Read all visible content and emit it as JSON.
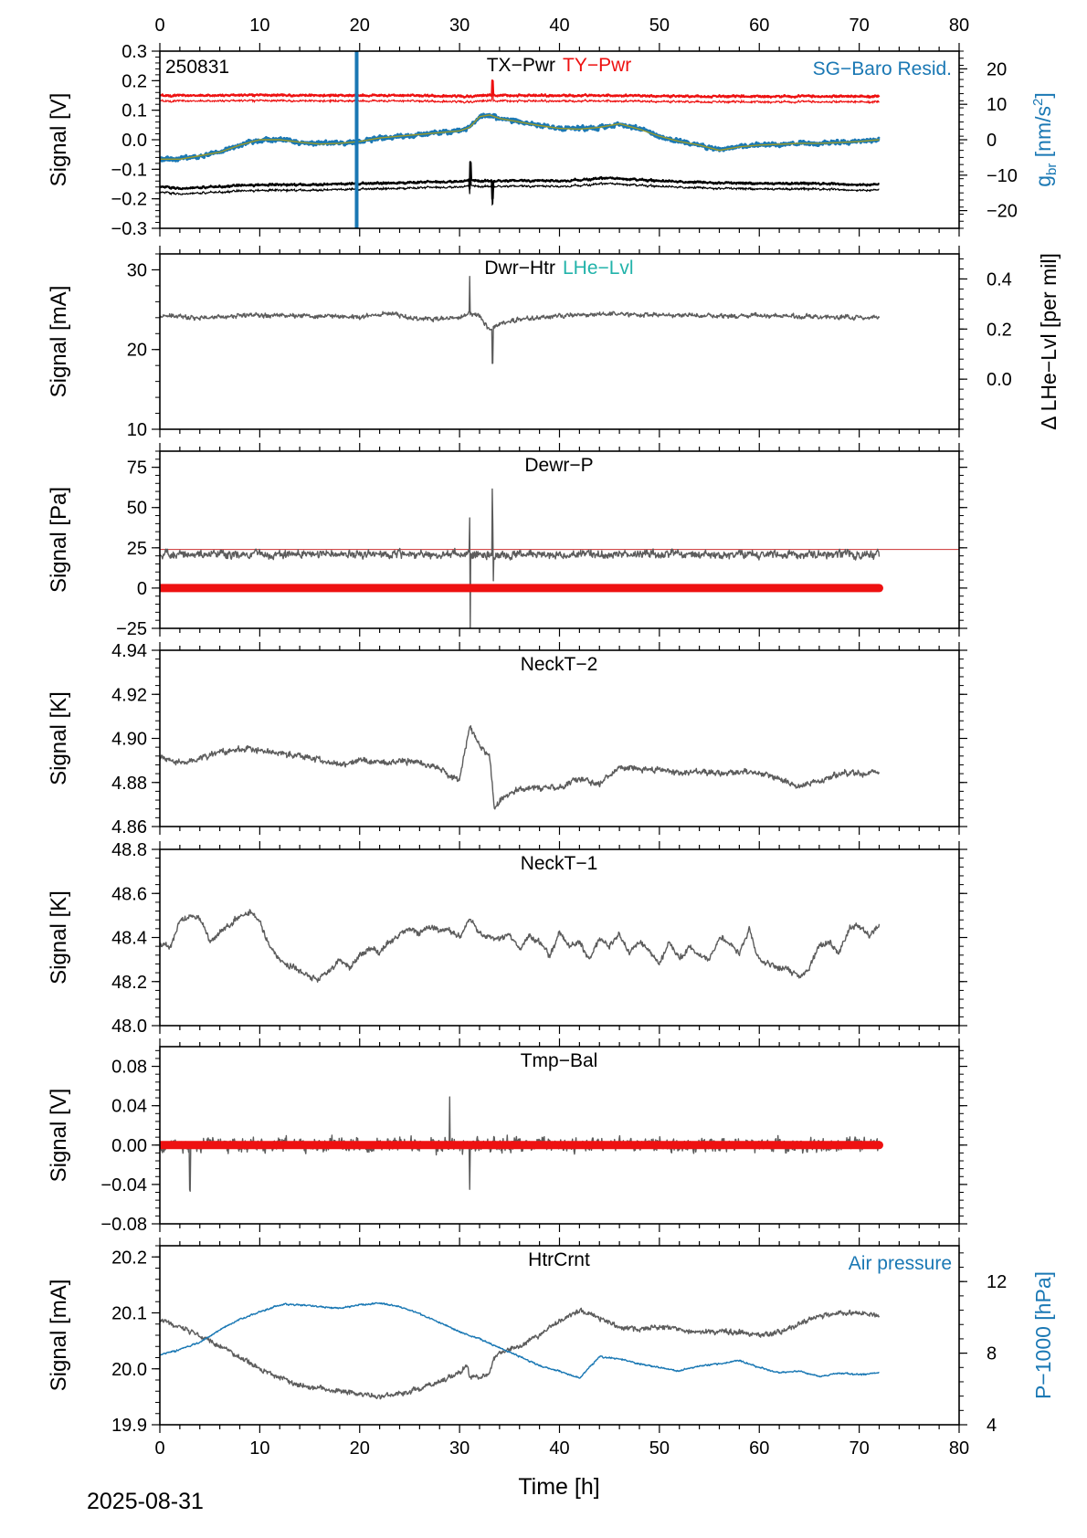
{
  "footer": {
    "date": "2025-08-31"
  },
  "x_axis": {
    "label": "Time [h]",
    "range": [
      0,
      80
    ],
    "ticks": [
      0,
      10,
      20,
      30,
      40,
      50,
      60,
      70,
      80
    ]
  },
  "colors": {
    "black": "#000000",
    "red": "#ee1111",
    "blue": "#1a78b4",
    "cyan": "#22b3aa",
    "gray": "#5c5c5c",
    "olive": "#9a9a2a",
    "thinred": "#cc3333"
  },
  "chart_data": [
    {
      "id": "p1",
      "type": "line",
      "stamp": "250831",
      "titles": [
        {
          "text": "TX−Pwr",
          "color": "#000000"
        },
        {
          "text": "TY−Pwr",
          "color": "#ee1111"
        }
      ],
      "corner_label": {
        "text": "SG−Baro Resid.",
        "color": "#1a78b4"
      },
      "ylabel": "Signal [V]",
      "ylim": [
        -0.3,
        0.3
      ],
      "yticks": [
        -0.3,
        -0.2,
        -0.1,
        0.0,
        0.1,
        0.2,
        0.3
      ],
      "ytick_labels": [
        "−0.3",
        "−0.2",
        "−0.1",
        "0.0",
        "0.1",
        "0.2",
        "0.3"
      ],
      "right_axis": {
        "label": "g_br [nm/s²]",
        "label_main": "g",
        "label_sub": "br",
        "label_rest": " [nm/s",
        "label_sup": "2",
        "label_end": "]",
        "color": "#1a78b4",
        "ylim": [
          -25,
          25
        ],
        "ticks": [
          -20,
          -10,
          0,
          10,
          20
        ],
        "tick_labels": [
          "−20",
          "−10",
          "0",
          "10",
          "20"
        ]
      },
      "series": [
        {
          "name": "TY−Pwr",
          "color": "#ee1111",
          "x": [
            0,
            5,
            10,
            15,
            20,
            25,
            30,
            31,
            33,
            35,
            40,
            45,
            50,
            55,
            60,
            65,
            70,
            72
          ],
          "y": [
            0.15,
            0.15,
            0.152,
            0.15,
            0.15,
            0.15,
            0.148,
            0.146,
            0.152,
            0.15,
            0.15,
            0.15,
            0.148,
            0.147,
            0.147,
            0.147,
            0.147,
            0.147
          ]
        },
        {
          "name": "TX−Pwr",
          "color": "#000000",
          "x": [
            0,
            3,
            6,
            10,
            15,
            20,
            25,
            30,
            31,
            33,
            36,
            40,
            45,
            50,
            55,
            60,
            65,
            70,
            72
          ],
          "y": [
            -0.16,
            -0.165,
            -0.158,
            -0.153,
            -0.152,
            -0.148,
            -0.145,
            -0.142,
            -0.138,
            -0.14,
            -0.138,
            -0.14,
            -0.13,
            -0.14,
            -0.145,
            -0.148,
            -0.148,
            -0.152,
            -0.152
          ]
        },
        {
          "name": "SG−Baro Resid.",
          "color": "#1a78b4",
          "axis": "right",
          "x": [
            0,
            2,
            4,
            6,
            8,
            10,
            12,
            14,
            16,
            18,
            20,
            22,
            24,
            26,
            28,
            30,
            31,
            32,
            33,
            34,
            36,
            38,
            40,
            42,
            44,
            46,
            48,
            50,
            52,
            54,
            56,
            58,
            60,
            62,
            64,
            66,
            68,
            70,
            72
          ],
          "y": [
            -5.5,
            -5.5,
            -4.5,
            -3.5,
            -1.5,
            0.0,
            0.0,
            -0.7,
            -1.2,
            -1.0,
            -0.5,
            0.5,
            1.0,
            1.5,
            2.0,
            2.5,
            3.5,
            6.5,
            7.0,
            6.0,
            5.0,
            4.0,
            3.2,
            3.0,
            3.5,
            4.5,
            3.0,
            1.0,
            -0.5,
            -1.5,
            -3.0,
            -2.0,
            -1.5,
            -1.3,
            -1.0,
            -1.0,
            -0.8,
            -0.5,
            0.0
          ]
        }
      ]
    },
    {
      "id": "p2",
      "type": "line",
      "titles": [
        {
          "text": "Dwr−Htr",
          "color": "#000000"
        },
        {
          "text": "LHe−Lvl",
          "color": "#22b3aa"
        }
      ],
      "ylabel": "Signal [mA]",
      "ylim": [
        10,
        32
      ],
      "yticks": [
        10,
        20,
        30
      ],
      "ytick_labels": [
        "10",
        "20",
        "30"
      ],
      "right_axis": {
        "label": "Δ LHe−Lvl [per mil]",
        "color": "#000000",
        "ylim": [
          -0.2,
          0.5
        ],
        "ticks": [
          0.0,
          0.2,
          0.4
        ],
        "tick_labels": [
          "0.0",
          "0.2",
          "0.4"
        ]
      },
      "series": [
        {
          "name": "Dwr−Htr",
          "color": "#5c5c5c",
          "x": [
            0,
            5,
            10,
            15,
            20,
            23,
            25,
            28,
            30,
            31,
            32,
            33,
            34,
            36,
            40,
            45,
            50,
            55,
            60,
            65,
            70,
            72
          ],
          "y": [
            24.2,
            24.0,
            24.4,
            24.2,
            24.1,
            24.6,
            24.0,
            23.8,
            24.0,
            24.5,
            24.3,
            22.5,
            23.2,
            23.8,
            24.2,
            24.5,
            24.3,
            24.2,
            24.3,
            24.1,
            24.0,
            24.0
          ]
        }
      ]
    },
    {
      "id": "p3",
      "type": "line",
      "titles": [
        {
          "text": "Dewr−P",
          "color": "#000000"
        }
      ],
      "ylabel": "Signal [Pa]",
      "ylim": [
        -25,
        85
      ],
      "yticks": [
        -25,
        0,
        25,
        50,
        75
      ],
      "ytick_labels": [
        "−25",
        "0",
        "25",
        "50",
        "75"
      ],
      "reference_line": {
        "y": 24,
        "color": "#cc3333"
      },
      "series": [
        {
          "name": "Dewr−P",
          "color": "#5c5c5c",
          "x": [
            0,
            10,
            20,
            30,
            40,
            50,
            60,
            72
          ],
          "y": [
            21,
            21,
            21,
            21,
            21,
            21,
            21,
            21
          ]
        },
        {
          "name": "zero",
          "color": "#ee1111",
          "x": [
            0,
            72
          ],
          "y": [
            0,
            0
          ]
        }
      ]
    },
    {
      "id": "p4",
      "type": "line",
      "titles": [
        {
          "text": "NeckT−2",
          "color": "#000000"
        }
      ],
      "ylabel": "Signal [K]",
      "ylim": [
        4.86,
        4.94
      ],
      "yticks": [
        4.86,
        4.88,
        4.9,
        4.92,
        4.94
      ],
      "ytick_labels": [
        "4.86",
        "4.88",
        "4.90",
        "4.92",
        "4.94"
      ],
      "series": [
        {
          "name": "NeckT−2",
          "color": "#5c5c5c",
          "x": [
            0,
            2,
            4,
            6,
            8,
            10,
            12,
            14,
            16,
            18,
            20,
            22,
            24,
            26,
            28,
            29,
            30,
            31,
            32,
            33,
            33.5,
            34,
            36,
            38,
            40,
            42,
            44,
            46,
            48,
            50,
            52,
            54,
            56,
            58,
            60,
            62,
            64,
            66,
            68,
            70,
            72
          ],
          "y": [
            4.891,
            4.889,
            4.891,
            4.894,
            4.895,
            4.895,
            4.893,
            4.892,
            4.89,
            4.888,
            4.89,
            4.889,
            4.89,
            4.889,
            4.887,
            4.883,
            4.881,
            4.905,
            4.897,
            4.892,
            4.868,
            4.872,
            4.877,
            4.878,
            4.877,
            4.882,
            4.879,
            4.887,
            4.886,
            4.886,
            4.884,
            4.885,
            4.884,
            4.885,
            4.884,
            4.882,
            4.878,
            4.881,
            4.884,
            4.884,
            4.885
          ]
        }
      ]
    },
    {
      "id": "p5",
      "type": "line",
      "titles": [
        {
          "text": "NeckT−1",
          "color": "#000000"
        }
      ],
      "ylabel": "Signal [K]",
      "ylim": [
        48.0,
        48.8
      ],
      "yticks": [
        48.0,
        48.2,
        48.4,
        48.6,
        48.8
      ],
      "ytick_labels": [
        "48.0",
        "48.2",
        "48.4",
        "48.6",
        "48.8"
      ],
      "series": [
        {
          "name": "NeckT−1",
          "color": "#5c5c5c",
          "x": [
            0,
            1,
            2,
            3,
            4,
            5,
            6,
            7,
            8,
            9,
            10,
            11,
            12,
            13,
            14,
            15,
            16,
            17,
            18,
            19,
            20,
            21,
            22,
            23,
            24,
            25,
            26,
            27,
            28,
            29,
            30,
            31,
            32,
            33,
            34,
            35,
            36,
            37,
            38,
            39,
            40,
            41,
            42,
            43,
            44,
            45,
            46,
            47,
            48,
            49,
            50,
            51,
            52,
            53,
            54,
            55,
            56,
            57,
            58,
            59,
            60,
            61,
            62,
            63,
            64,
            65,
            66,
            67,
            68,
            69,
            70,
            71,
            72
          ],
          "y": [
            48.37,
            48.36,
            48.47,
            48.5,
            48.49,
            48.38,
            48.42,
            48.46,
            48.5,
            48.52,
            48.47,
            48.36,
            48.3,
            48.27,
            48.25,
            48.22,
            48.21,
            48.25,
            48.3,
            48.26,
            48.32,
            48.35,
            48.33,
            48.38,
            48.42,
            48.44,
            48.42,
            48.45,
            48.43,
            48.44,
            48.4,
            48.48,
            48.42,
            48.4,
            48.39,
            48.42,
            48.35,
            48.41,
            48.38,
            48.32,
            48.42,
            48.36,
            48.38,
            48.3,
            48.4,
            48.36,
            48.42,
            48.33,
            48.38,
            48.34,
            48.28,
            48.38,
            48.3,
            48.36,
            48.32,
            48.3,
            48.4,
            48.38,
            48.32,
            48.44,
            48.3,
            48.28,
            48.26,
            48.25,
            48.22,
            48.26,
            48.36,
            48.38,
            48.33,
            48.44,
            48.46,
            48.4,
            48.46
          ]
        }
      ]
    },
    {
      "id": "p6",
      "type": "line",
      "titles": [
        {
          "text": "Tmp−Bal",
          "color": "#000000"
        }
      ],
      "ylabel": "Signal [V]",
      "ylim": [
        -0.08,
        0.1
      ],
      "yticks": [
        -0.08,
        -0.04,
        0.0,
        0.04,
        0.08
      ],
      "ytick_labels": [
        "−0.08",
        "−0.04",
        "0.00",
        "0.04",
        "0.08"
      ],
      "series": [
        {
          "name": "Tmp−Bal",
          "color": "#5c5c5c",
          "x": [
            0,
            72
          ],
          "y": [
            0.0,
            0.0
          ]
        },
        {
          "name": "zero",
          "color": "#ee1111",
          "x": [
            0,
            72
          ],
          "y": [
            0,
            0
          ]
        }
      ]
    },
    {
      "id": "p7",
      "type": "line",
      "titles": [
        {
          "text": "HtrCrnt",
          "color": "#000000"
        }
      ],
      "corner_label": {
        "text": "Air pressure",
        "color": "#1a78b4"
      },
      "ylabel": "Signal [mA]",
      "ylim": [
        19.9,
        20.22
      ],
      "yticks": [
        19.9,
        20.0,
        20.1,
        20.2
      ],
      "ytick_labels": [
        "19.9",
        "20.0",
        "20.1",
        "20.2"
      ],
      "right_axis": {
        "label": "P−1000 [hPa]",
        "color": "#1a78b4",
        "ylim": [
          4,
          14
        ],
        "ticks": [
          4,
          8,
          12
        ],
        "tick_labels": [
          "4",
          "8",
          "12"
        ]
      },
      "series": [
        {
          "name": "HtrCrnt",
          "color": "#5c5c5c",
          "x": [
            0,
            2,
            4,
            6,
            8,
            10,
            12,
            14,
            16,
            18,
            20,
            22,
            24,
            26,
            28,
            30,
            30.8,
            31,
            32,
            33,
            33.5,
            34,
            36,
            38,
            40,
            42,
            44,
            46,
            48,
            50,
            52,
            54,
            56,
            58,
            60,
            62,
            64,
            66,
            68,
            70,
            72
          ],
          "y": [
            20.085,
            20.075,
            20.06,
            20.04,
            20.02,
            20.0,
            19.985,
            19.97,
            19.965,
            19.96,
            19.955,
            19.95,
            19.955,
            19.965,
            19.975,
            19.995,
            20.005,
            19.985,
            19.985,
            19.99,
            20.02,
            20.03,
            20.04,
            20.06,
            20.085,
            20.105,
            20.09,
            20.075,
            20.07,
            20.075,
            20.07,
            20.065,
            20.065,
            20.065,
            20.06,
            20.065,
            20.08,
            20.095,
            20.1,
            20.1,
            20.095
          ]
        },
        {
          "name": "Air pressure",
          "color": "#1a78b4",
          "axis": "right",
          "x": [
            0,
            2,
            4,
            6,
            8,
            10,
            12,
            14,
            16,
            18,
            20,
            22,
            24,
            26,
            28,
            30,
            32,
            34,
            36,
            38,
            40,
            42,
            44,
            46,
            48,
            50,
            52,
            54,
            56,
            58,
            60,
            62,
            64,
            66,
            68,
            70,
            72
          ],
          "y": [
            7.9,
            8.2,
            8.6,
            9.3,
            9.9,
            10.3,
            10.7,
            10.7,
            10.6,
            10.5,
            10.7,
            10.8,
            10.6,
            10.2,
            9.7,
            9.2,
            8.8,
            8.3,
            7.8,
            7.3,
            7.0,
            6.6,
            7.8,
            7.7,
            7.4,
            7.2,
            7.0,
            7.3,
            7.4,
            7.6,
            7.2,
            6.9,
            7.0,
            6.7,
            6.9,
            6.8,
            6.9
          ]
        }
      ]
    }
  ]
}
